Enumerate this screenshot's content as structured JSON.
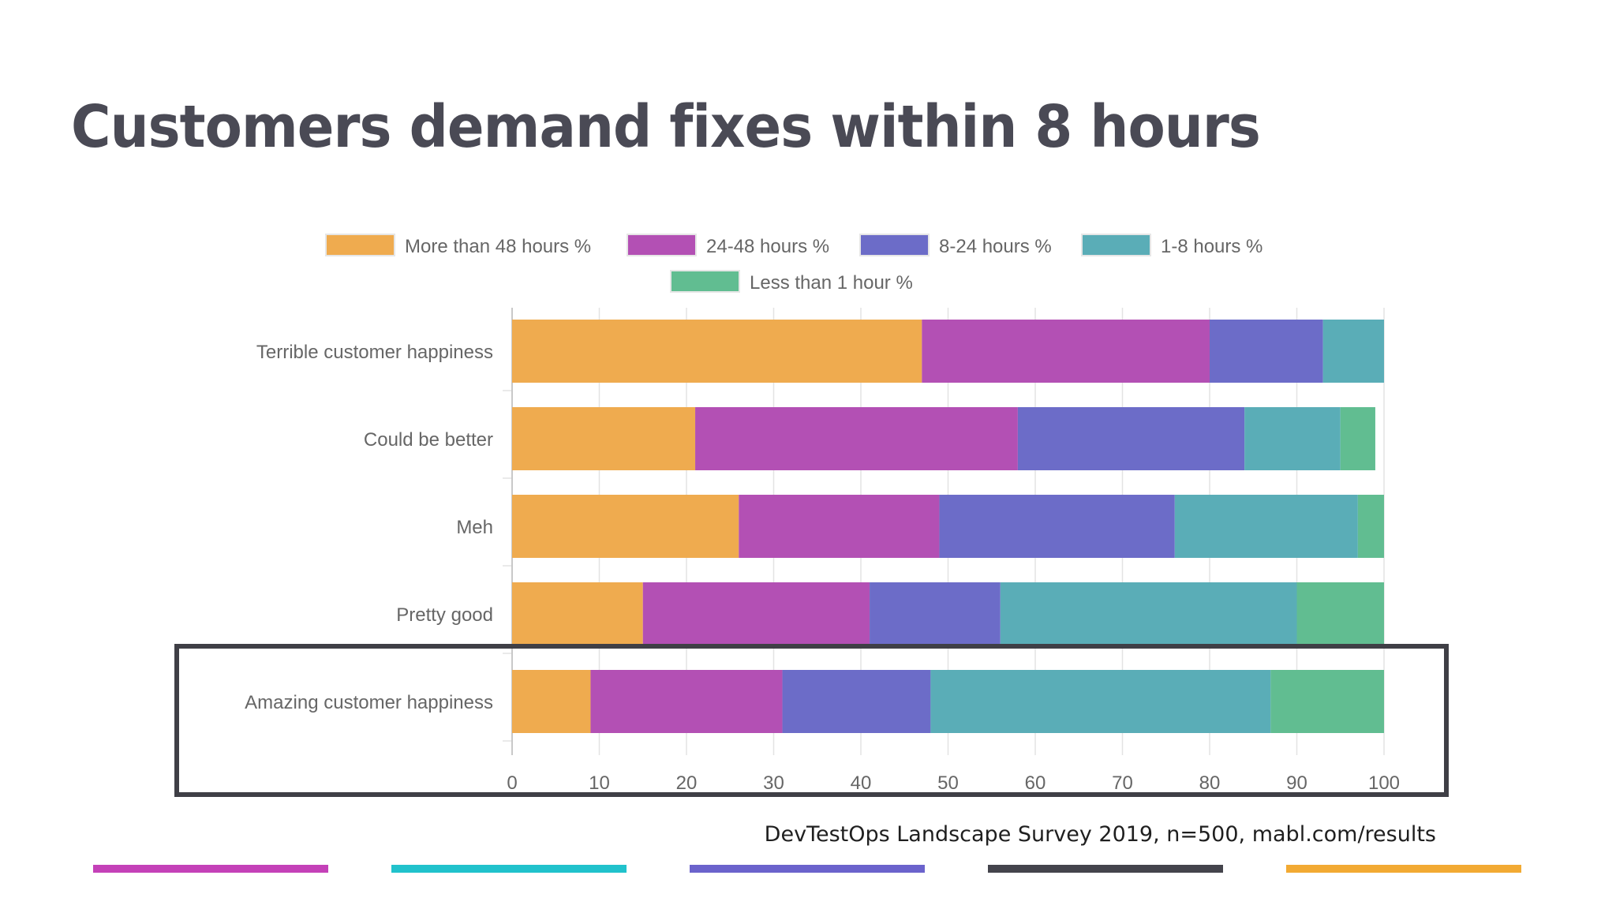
{
  "slide": {
    "title": "Customers demand fixes within 8 hours",
    "source": "DevTestOps Landscape Survey 2019, n=500, mabl.com/results",
    "footer_colors": [
      "#c441b8",
      "#21c2cc",
      "#6b63cc",
      "#44444c",
      "#f2aa33"
    ]
  },
  "chart_data": {
    "type": "bar",
    "orientation": "horizontal",
    "stacked": true,
    "categories": [
      "Terrible customer happiness",
      "Could be better",
      "Meh",
      "Pretty good",
      "Amazing customer happiness"
    ],
    "series": [
      {
        "name": "More than 48 hours %",
        "color": "#efab4f",
        "values": [
          47,
          21,
          26,
          15,
          9
        ]
      },
      {
        "name": "24-48 hours %",
        "color": "#b350b4",
        "values": [
          33,
          37,
          23,
          26,
          22
        ]
      },
      {
        "name": "8-24 hours %",
        "color": "#6c6cc8",
        "values": [
          13,
          26,
          27,
          15,
          17
        ]
      },
      {
        "name": "1-8 hours %",
        "color": "#5aadb7",
        "values": [
          7,
          11,
          21,
          34,
          39
        ]
      },
      {
        "name": "Less than 1 hour %",
        "color": "#61bd91",
        "values": [
          0,
          4,
          3,
          10,
          13
        ]
      }
    ],
    "x_ticks": [
      "0",
      "10",
      "20",
      "30",
      "40",
      "50",
      "60",
      "70",
      "80",
      "90",
      "100"
    ],
    "xlim": [
      0,
      100
    ],
    "grid": true,
    "legend_position": "top",
    "highlighted_category": "Amazing customer happiness"
  }
}
